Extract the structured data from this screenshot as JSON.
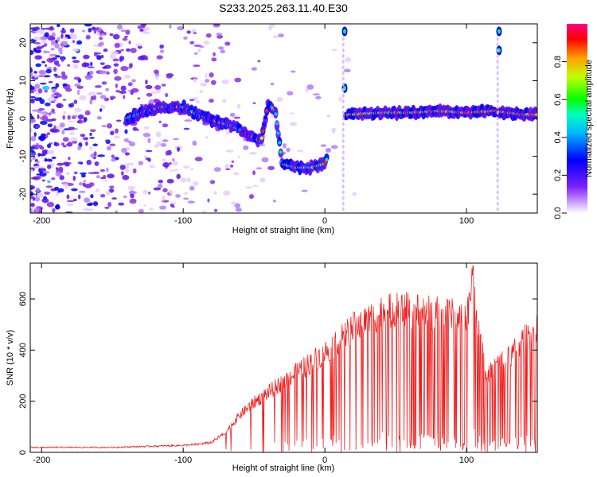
{
  "title": "S233.2025.263.11.40.E30",
  "chart_data": [
    {
      "type": "heatmap",
      "name": "spectrogram",
      "xlabel": "Height of straight line (km)",
      "ylabel": "Frequency (Hz)",
      "xlim": [
        -208,
        150
      ],
      "ylim": [
        -25,
        25
      ],
      "xticks": [
        -200,
        -100,
        0,
        100
      ],
      "xtick_labels": [
        "-200",
        "-100",
        "0",
        "100"
      ],
      "yticks": [
        -20,
        -10,
        0,
        10,
        20
      ],
      "ytick_labels": [
        "-20",
        "-10",
        "0",
        "10",
        "20"
      ],
      "colorbar": {
        "label": "Normalized spectral amplitude",
        "range": [
          0,
          1
        ],
        "ticks": [
          0.0,
          0.2,
          0.4,
          0.6,
          0.8
        ],
        "tick_labels": [
          "0.0",
          "0.2",
          "0.4",
          "0.6",
          "0.8"
        ],
        "colors": [
          "#ffffff",
          "#9a40ff",
          "#0000ff",
          "#00c8ff",
          "#00ff40",
          "#c8ff00",
          "#ff3000",
          "#ff0080"
        ]
      },
      "ridge": {
        "x": [
          -140,
          -125,
          -115,
          -100,
          -90,
          -75,
          -65,
          -55,
          -45,
          -40,
          -35,
          -30,
          -20,
          -10,
          0,
          15,
          40,
          60,
          80,
          100,
          120,
          140,
          150
        ],
        "y": [
          0,
          2,
          3,
          3,
          1,
          -1,
          -2,
          -4,
          -6,
          4,
          2,
          -12,
          -13,
          -13,
          -12,
          1,
          1.5,
          1.5,
          2,
          1.5,
          2,
          1,
          1
        ]
      }
    },
    {
      "type": "line",
      "name": "snr",
      "xlabel": "Height of straight line (km)",
      "ylabel": "SNR (10 * v/v)",
      "xlim": [
        -208,
        150
      ],
      "ylim": [
        0,
        740
      ],
      "xticks": [
        -200,
        -100,
        0,
        100
      ],
      "xtick_labels": [
        "-200",
        "-100",
        "0",
        "100"
      ],
      "yticks": [
        0,
        200,
        400,
        600
      ],
      "ytick_labels": [
        "0",
        "200",
        "400",
        "600"
      ],
      "series": [
        {
          "name": "SNR",
          "color": "#f02020",
          "envelope_x": [
            -208,
            -150,
            -100,
            -90,
            -80,
            -70,
            -60,
            -50,
            -40,
            -30,
            -20,
            -10,
            0,
            10,
            20,
            30,
            40,
            50,
            60,
            70,
            80,
            90,
            100,
            104,
            110,
            115,
            120,
            130,
            140,
            150
          ],
          "envelope_y": [
            20,
            20,
            28,
            32,
            40,
            80,
            150,
            200,
            240,
            280,
            320,
            360,
            400,
            450,
            500,
            530,
            560,
            570,
            570,
            560,
            555,
            550,
            540,
            680,
            470,
            300,
            350,
            380,
            450,
            500
          ]
        }
      ]
    }
  ]
}
